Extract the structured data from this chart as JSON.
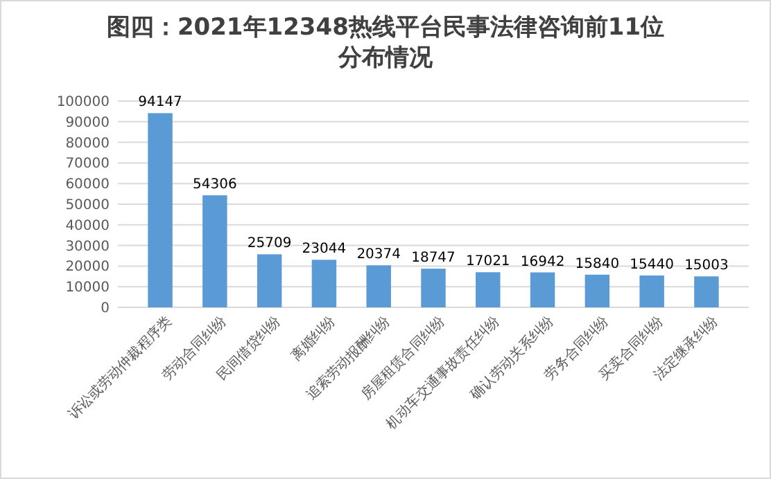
{
  "chart_data": {
    "type": "bar",
    "title": "图四：2021年12348热线平台民事法律咨询前11位分布情况",
    "categories": [
      "诉讼或劳动仲裁程序类",
      "劳动合同纠纷",
      "民间借贷纠纷",
      "离婚纠纷",
      "追索劳动报酬纠纷",
      "房屋租赁合同纠纷",
      "机动车交通事故责任纠纷",
      "确认劳动关系纠纷",
      "劳务合同纠纷",
      "买卖合同纠纷",
      "法定继承纠纷"
    ],
    "values": [
      94147,
      54306,
      25709,
      23044,
      20374,
      18747,
      17021,
      16942,
      15840,
      15440,
      15003
    ],
    "color": "#5b9bd5",
    "data_labels": true,
    "grid": "y",
    "ylim": [
      0,
      100000
    ],
    "yticks": [
      0,
      10000,
      20000,
      30000,
      40000,
      50000,
      60000,
      70000,
      80000,
      90000,
      100000
    ]
  }
}
